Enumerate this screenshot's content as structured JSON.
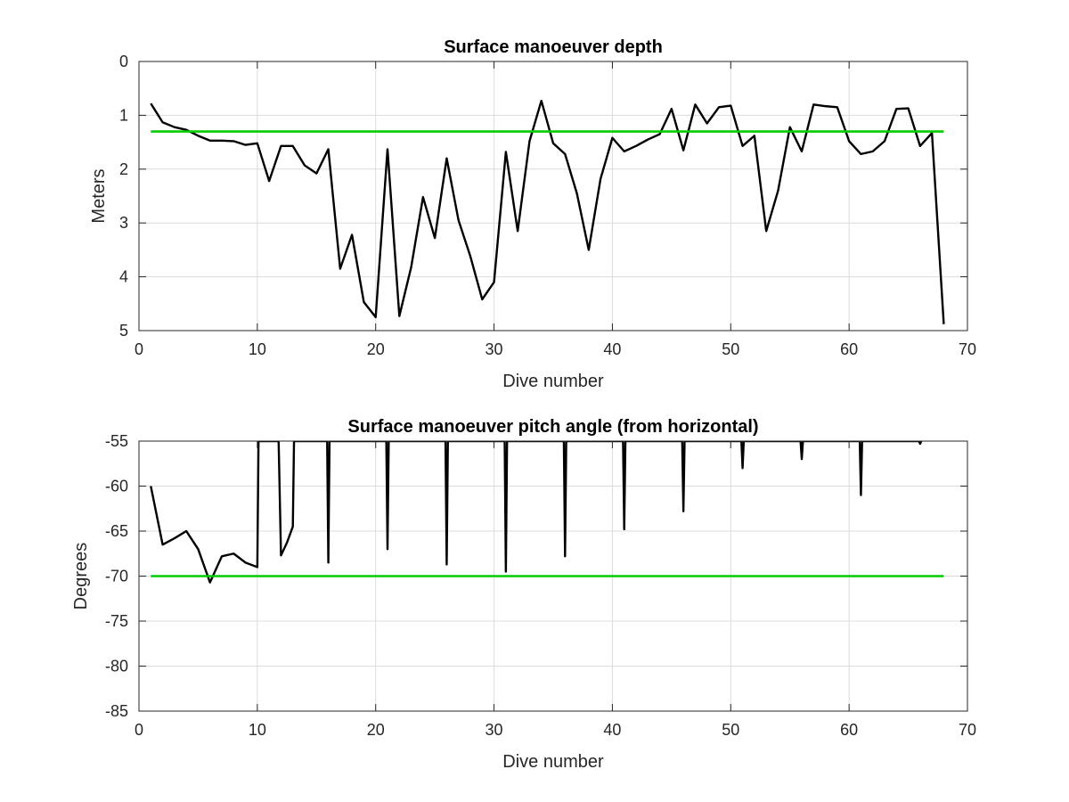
{
  "chart_data": [
    {
      "type": "line",
      "title": "Surface manoeuver depth",
      "xlabel": "Dive number",
      "ylabel": "Meters",
      "xlim": [
        0,
        70
      ],
      "ylim": [
        0,
        5
      ],
      "y_reversed": true,
      "grid": true,
      "xticks": [
        0,
        10,
        20,
        30,
        40,
        50,
        60,
        70
      ],
      "yticks": [
        0,
        1,
        2,
        3,
        4,
        5
      ],
      "series": [
        {
          "color": "#000000",
          "x": [
            1,
            2,
            3,
            4,
            5,
            6,
            7,
            8,
            9,
            10,
            11,
            12,
            13,
            14,
            15,
            16,
            17,
            18,
            19,
            20,
            21,
            22,
            23,
            24,
            25,
            26,
            27,
            28,
            29,
            30,
            31,
            32,
            33,
            34,
            35,
            36,
            37,
            38,
            39,
            40,
            41,
            42,
            43,
            44,
            45,
            46,
            47,
            48,
            49,
            50,
            51,
            52,
            53,
            54,
            55,
            56,
            57,
            58,
            59,
            60,
            61,
            62,
            63,
            64,
            65,
            66,
            67,
            68
          ],
          "y": [
            0.78,
            1.13,
            1.22,
            1.27,
            1.38,
            1.47,
            1.47,
            1.48,
            1.55,
            1.52,
            2.22,
            1.57,
            1.57,
            1.93,
            2.08,
            1.63,
            3.85,
            3.22,
            4.47,
            4.75,
            1.63,
            4.73,
            3.82,
            2.52,
            3.28,
            1.8,
            2.95,
            3.62,
            4.42,
            4.1,
            1.68,
            3.15,
            1.48,
            0.73,
            1.52,
            1.72,
            2.45,
            3.5,
            2.18,
            1.42,
            1.67,
            1.57,
            1.45,
            1.35,
            0.88,
            1.65,
            0.8,
            1.15,
            0.85,
            0.82,
            1.57,
            1.38,
            3.15,
            2.4,
            1.22,
            1.67,
            0.8,
            0.83,
            0.85,
            1.48,
            1.72,
            1.67,
            1.48,
            0.88,
            0.87,
            1.57,
            1.33,
            4.88
          ]
        },
        {
          "color": "#00cc00",
          "x": [
            1,
            68
          ],
          "y": [
            1.3,
            1.3
          ]
        }
      ]
    },
    {
      "type": "line",
      "title": "Surface manoeuver pitch angle (from horizontal)",
      "xlabel": "Dive number",
      "ylabel": "Degrees",
      "xlim": [
        0,
        70
      ],
      "ylim": [
        -85,
        -55
      ],
      "grid": true,
      "xticks": [
        0,
        10,
        20,
        30,
        40,
        50,
        60,
        70
      ],
      "yticks": [
        -55,
        -60,
        -65,
        -70,
        -75,
        -80,
        -85
      ],
      "series": [
        {
          "color": "#000000",
          "x": [
            1,
            2,
            3,
            4,
            5,
            6,
            7,
            8,
            9,
            10,
            10.1,
            10.2,
            11.8,
            12,
            12.5,
            13,
            13.1,
            15.9,
            16,
            16.1,
            20.9,
            21,
            21.1,
            25.9,
            26,
            26.1,
            30.9,
            31,
            31.1,
            35.9,
            36,
            36.1,
            40.9,
            41,
            41.1,
            45.9,
            46,
            46.1,
            50.9,
            51,
            51.1,
            55.9,
            56,
            56.1,
            60.9,
            61,
            61.1,
            65.9,
            66,
            66.1
          ],
          "y": [
            -60,
            -66.5,
            -65.8,
            -65,
            -67,
            -70.7,
            -67.8,
            -67.5,
            -68.5,
            -69,
            -55,
            -55,
            -55,
            -67.7,
            -66.3,
            -64.5,
            -55,
            -55,
            -68.5,
            -55,
            -55,
            -67,
            -55,
            -55,
            -68.7,
            -55,
            -55,
            -69.5,
            -55,
            -55,
            -67.8,
            -55,
            -55,
            -64.8,
            -55,
            -55,
            -62.8,
            -55,
            -55,
            -58,
            -55,
            -55,
            -57,
            -55,
            -55,
            -61,
            -55,
            -55,
            -55.3,
            -55
          ]
        },
        {
          "color": "#00cc00",
          "x": [
            1,
            68
          ],
          "y": [
            -70,
            -70
          ]
        }
      ]
    }
  ]
}
